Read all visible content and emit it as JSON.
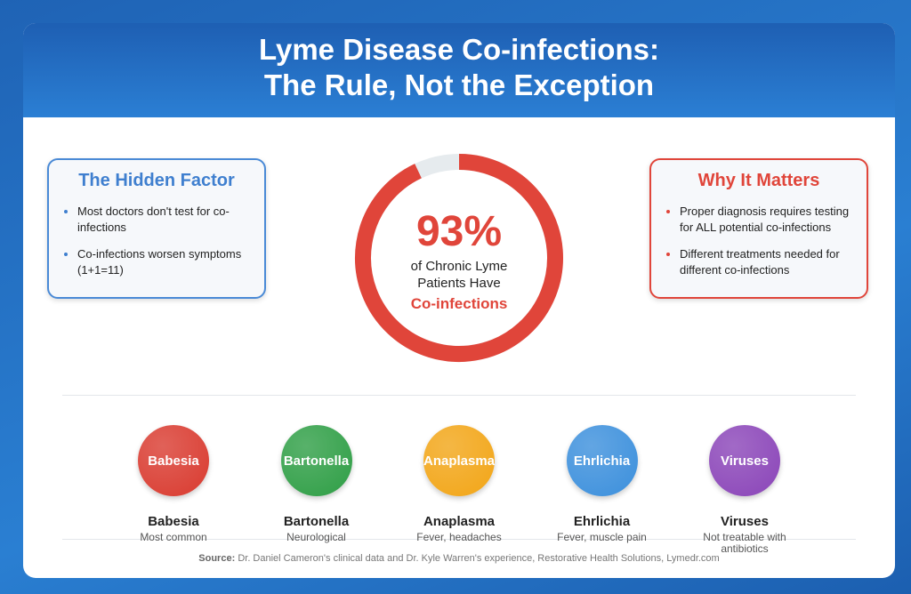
{
  "header": {
    "title_line1": "Lyme Disease Co-infections:",
    "title_line2": "The Rule, Not the Exception"
  },
  "left_box": {
    "title": "The Hidden Factor",
    "items": [
      "Most doctors don't test for co-infections",
      "Co-infections worsen symptoms (1+1=11)"
    ]
  },
  "right_box": {
    "title": "Why It Matters",
    "items": [
      "Proper diagnosis requires testing for ALL potential co-infections",
      "Different treatments needed for different co-infections"
    ]
  },
  "donut": {
    "value": 93,
    "range": [
      0,
      100
    ],
    "value_label": "93%",
    "caption": "of Chronic Lyme Patients Have",
    "highlight": "Co-infections"
  },
  "infections": [
    {
      "badge": "Babesia",
      "name": "Babesia",
      "note": "Most common",
      "color": "#d93a2f"
    },
    {
      "badge": "Bartonella",
      "name": "Bartonella",
      "note": "Neurological",
      "color": "#2e9e45"
    },
    {
      "badge": "Anaplasma",
      "name": "Anaplasma",
      "note": "Fever, headaches",
      "color": "#f2a516"
    },
    {
      "badge": "Ehrlichia",
      "name": "Ehrlichia",
      "note": "Fever, muscle pain",
      "color": "#3b8fdc"
    },
    {
      "badge": "Viruses",
      "name": "Viruses",
      "note": "Not treatable with antibiotics",
      "color": "#8a44b8"
    }
  ],
  "source": {
    "label": "Source:",
    "text": "Dr. Daniel Cameron's clinical data and Dr. Kyle Warren's experience, Restorative Health Solutions, Lymedr.com"
  }
}
